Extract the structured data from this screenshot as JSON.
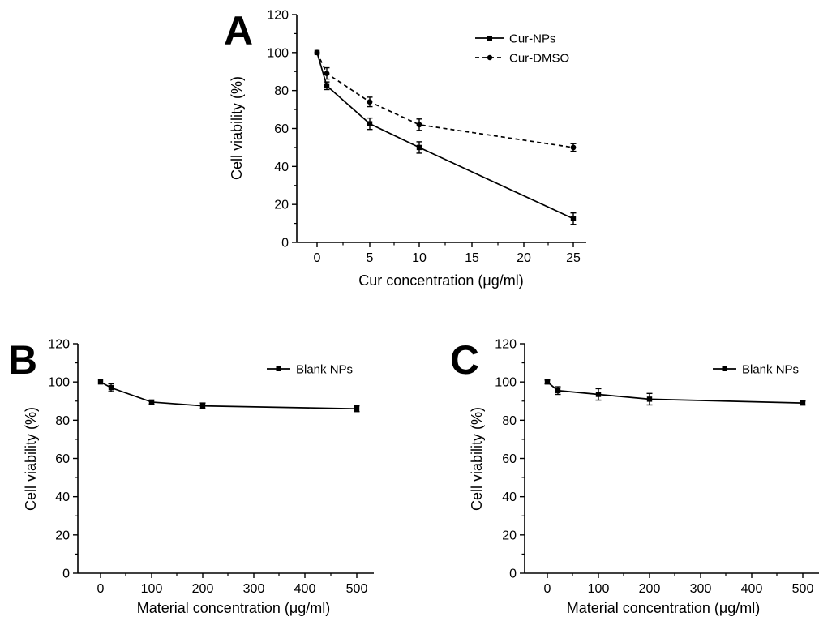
{
  "chart_data": [
    {
      "panel": "A",
      "type": "line",
      "xlabel": "Cur concentration (μg/ml)",
      "ylabel": "Cell viability (%)",
      "categories": [
        0,
        1,
        5,
        10,
        25
      ],
      "x_tick_labels": [
        "0",
        "5",
        "10",
        "15",
        "20",
        "25"
      ],
      "y_tick_labels": [
        "0",
        "20",
        "40",
        "60",
        "80",
        "100",
        "120"
      ],
      "ylim": [
        0,
        120
      ],
      "legend_position": "top-right",
      "series": [
        {
          "name": "Cur-NPs",
          "style": "solid",
          "marker": "square",
          "values": [
            100,
            82.5,
            62.5,
            50,
            12.5
          ],
          "errors": [
            0.5,
            2,
            3,
            3,
            3
          ]
        },
        {
          "name": "Cur-DMSO",
          "style": "dashed",
          "marker": "circle",
          "values": [
            100,
            89,
            74,
            62,
            50
          ],
          "errors": [
            0.5,
            3,
            2.5,
            3,
            2
          ]
        }
      ]
    },
    {
      "panel": "B",
      "type": "line",
      "xlabel": "Material concentration (μg/ml)",
      "ylabel": "Cell viability (%)",
      "categories": [
        0,
        20,
        100,
        200,
        500
      ],
      "x_tick_labels": [
        "0",
        "100",
        "200",
        "300",
        "400",
        "500"
      ],
      "y_tick_labels": [
        "0",
        "20",
        "40",
        "60",
        "80",
        "100",
        "120"
      ],
      "ylim": [
        0,
        120
      ],
      "legend_position": "top-right",
      "series": [
        {
          "name": "Blank NPs",
          "style": "solid",
          "marker": "square",
          "values": [
            100,
            97,
            89.5,
            87.5,
            86
          ],
          "errors": [
            0.5,
            2,
            1,
            1.5,
            1.5
          ]
        }
      ]
    },
    {
      "panel": "C",
      "type": "line",
      "xlabel": "Material concentration (μg/ml)",
      "ylabel": "Cell viability (%)",
      "categories": [
        0,
        20,
        100,
        200,
        500
      ],
      "x_tick_labels": [
        "0",
        "100",
        "200",
        "300",
        "400",
        "500"
      ],
      "y_tick_labels": [
        "0",
        "20",
        "40",
        "60",
        "80",
        "100",
        "120"
      ],
      "ylim": [
        0,
        120
      ],
      "legend_position": "top-right",
      "series": [
        {
          "name": "Blank NPs",
          "style": "solid",
          "marker": "square",
          "values": [
            100,
            95.5,
            93.5,
            91,
            89
          ],
          "errors": [
            1,
            2,
            3,
            3,
            1
          ]
        }
      ]
    }
  ]
}
